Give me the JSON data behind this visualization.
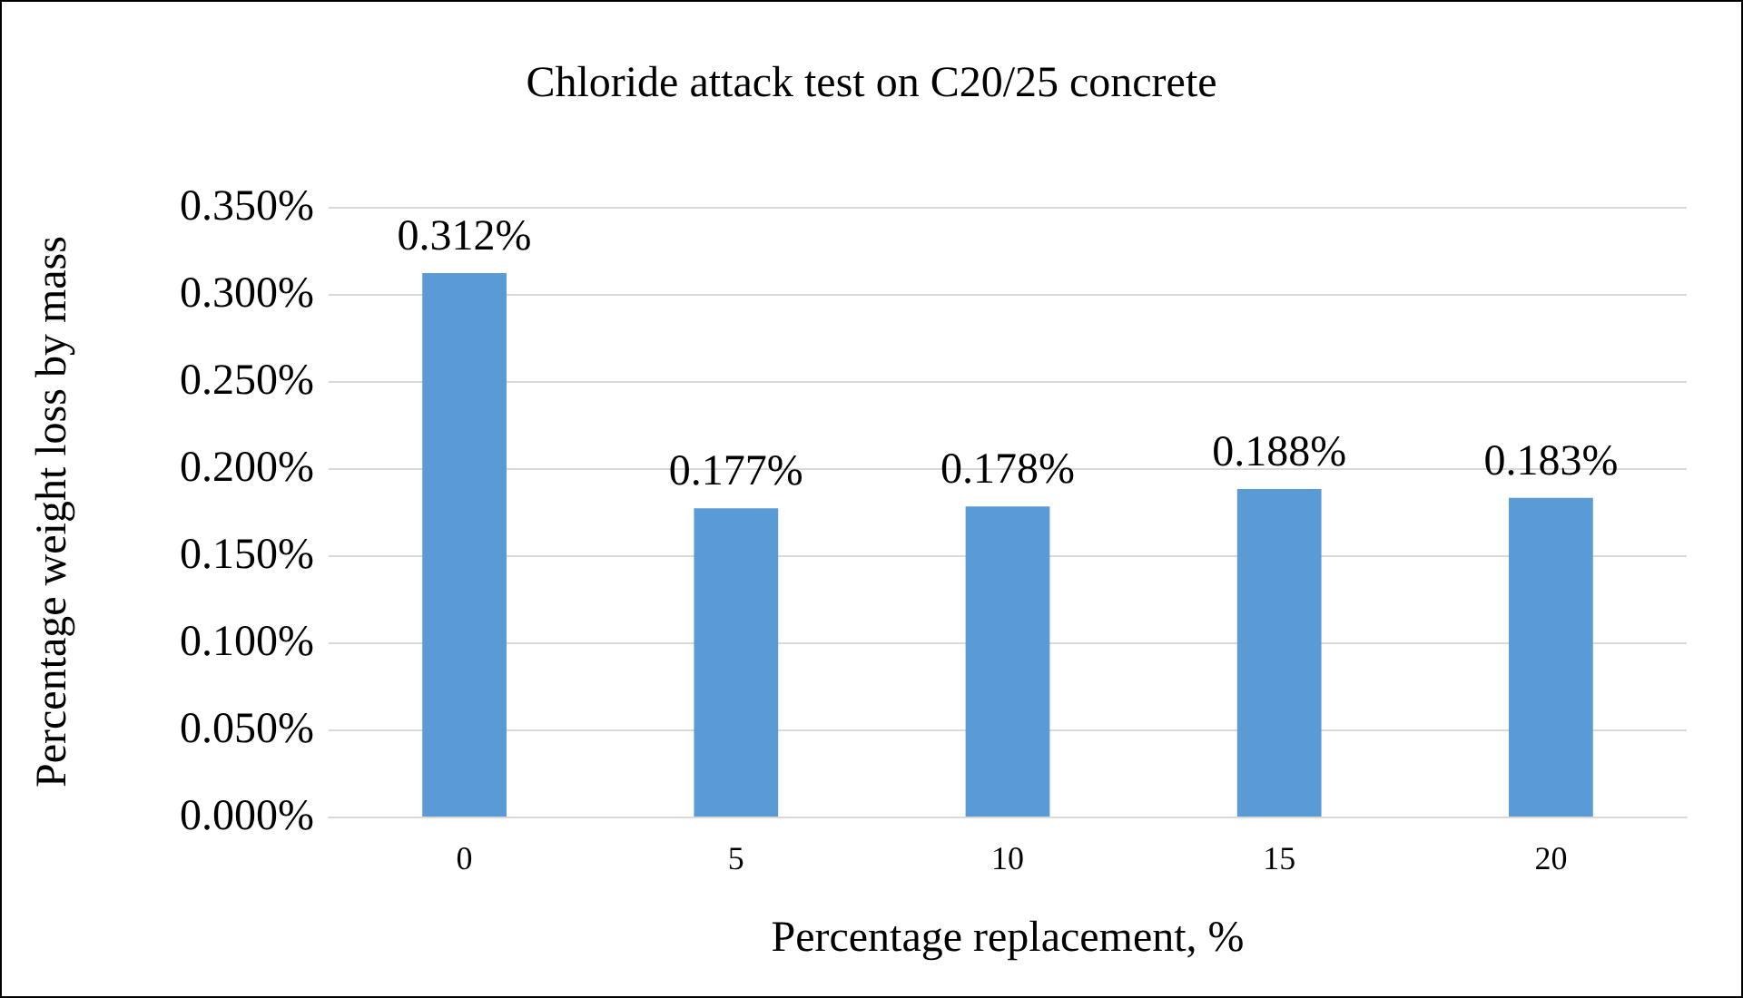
{
  "chart_data": {
    "type": "bar",
    "title": "Chloride attack test on C20/25 concrete",
    "xlabel": "Percentage replacement, %",
    "ylabel": "Percentage weight loss by mass",
    "categories": [
      "0",
      "5",
      "10",
      "15",
      "20"
    ],
    "values": [
      0.312,
      0.177,
      0.178,
      0.188,
      0.183
    ],
    "value_labels": [
      "0.312%",
      "0.177%",
      "0.178%",
      "0.188%",
      "0.183%"
    ],
    "color": "#5b9bd5",
    "ylim": [
      0,
      0.35
    ],
    "yticks": [
      {
        "value": 0,
        "label": "0.000%"
      },
      {
        "value": 0.05,
        "label": "0.050%"
      },
      {
        "value": 0.1,
        "label": "0.100%"
      },
      {
        "value": 0.15,
        "label": "0.150%"
      },
      {
        "value": 0.2,
        "label": "0.200%"
      },
      {
        "value": 0.25,
        "label": "0.250%"
      },
      {
        "value": 0.3,
        "label": "0.300%"
      },
      {
        "value": 0.35,
        "label": "0.350%"
      }
    ],
    "grid": "y"
  }
}
